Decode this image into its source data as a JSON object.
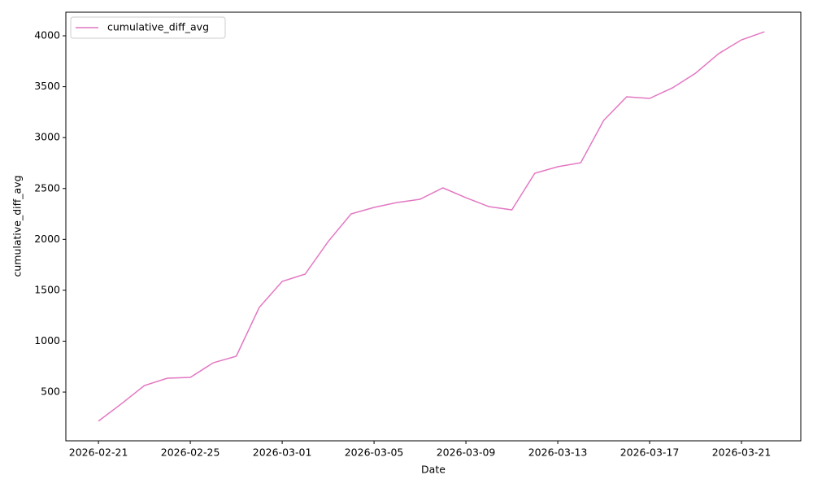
{
  "chart_data": {
    "type": "line",
    "xlabel": "Date",
    "ylabel": "cumulative_diff_avg",
    "x": [
      "2026-02-21",
      "2026-02-22",
      "2026-02-23",
      "2026-02-24",
      "2026-02-25",
      "2026-02-26",
      "2026-02-27",
      "2026-02-28",
      "2026-03-01",
      "2026-03-02",
      "2026-03-03",
      "2026-03-04",
      "2026-03-05",
      "2026-03-06",
      "2026-03-07",
      "2026-03-08",
      "2026-03-09",
      "2026-03-10",
      "2026-03-11",
      "2026-03-12",
      "2026-03-13",
      "2026-03-14",
      "2026-03-15",
      "2026-03-16",
      "2026-03-17",
      "2026-03-18",
      "2026-03-19",
      "2026-03-20",
      "2026-03-21",
      "2026-03-22"
    ],
    "series": [
      {
        "name": "cumulative_diff_avg",
        "color": "#e377c2",
        "values": [
          215,
          385,
          564,
          636,
          644,
          788,
          852,
          1331,
          1587,
          1659,
          1978,
          2250,
          2314,
          2362,
          2394,
          2506,
          2410,
          2322,
          2290,
          2650,
          2714,
          2753,
          3169,
          3401,
          3385,
          3489,
          3633,
          3824,
          3960,
          4040
        ]
      }
    ],
    "xlim": [
      "2026-02-19T13:55Z",
      "2026-03-23T14:00Z"
    ],
    "xticks": [
      "2026-02-21",
      "2026-02-25",
      "2026-03-01",
      "2026-03-05",
      "2026-03-09",
      "2026-03-13",
      "2026-03-17",
      "2026-03-21"
    ],
    "ylim": [
      21,
      4232
    ],
    "yticks": [
      500,
      1000,
      1500,
      2000,
      2500,
      3000,
      3500,
      4000
    ],
    "legend": "upper left"
  }
}
